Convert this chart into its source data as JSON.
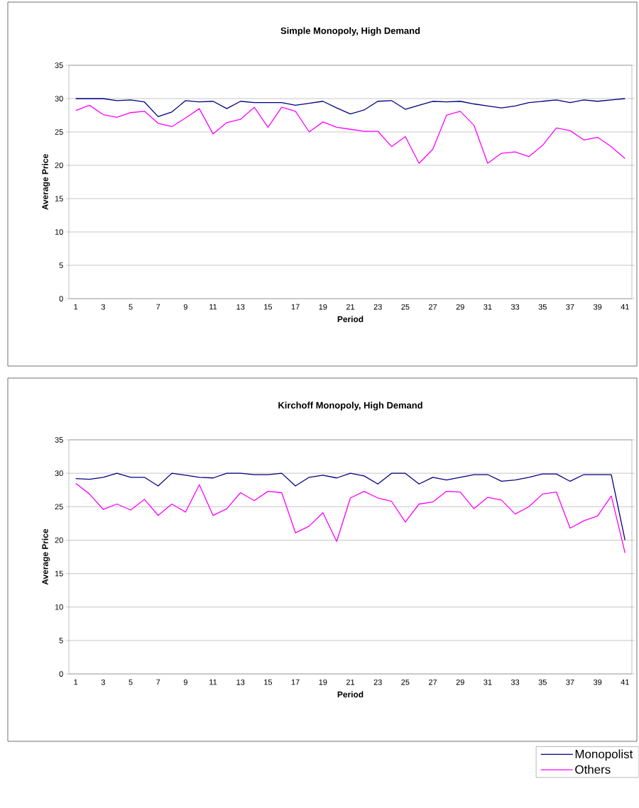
{
  "chart_data": [
    {
      "type": "line",
      "title": "Simple Monopoly, High Demand",
      "xlabel": "Period",
      "ylabel": "Average Price",
      "categories": [
        "1",
        null,
        "3",
        null,
        "5",
        null,
        "7",
        null,
        "9",
        null,
        "11",
        null,
        "13",
        null,
        "15",
        null,
        "17",
        null,
        "19",
        null,
        "21",
        null,
        "23",
        null,
        "25",
        null,
        "27",
        null,
        "29",
        null,
        "31",
        null,
        "33",
        null,
        "35",
        null,
        "37",
        null,
        "39",
        null,
        "41"
      ],
      "series": [
        {
          "color": "#000080",
          "values": [
            30,
            30,
            30,
            29.7,
            29.8,
            29.5,
            27.3,
            28,
            29.7,
            29.5,
            29.6,
            28.5,
            29.6,
            29.4,
            29.4,
            29.4,
            29,
            29.3,
            29.6,
            28.6,
            27.7,
            28.3,
            29.6,
            29.7,
            28.4,
            29,
            29.6,
            29.5,
            29.6,
            29.2,
            28.9,
            28.6,
            28.9,
            29.4,
            29.6,
            29.8,
            29.4,
            29.8,
            29.6,
            29.8,
            30
          ]
        },
        {
          "color": "#ff00ff",
          "values": [
            28.2,
            29,
            27.6,
            27.2,
            27.9,
            28.1,
            26.3,
            25.8,
            27.1,
            28.5,
            24.7,
            26.4,
            26.9,
            28.7,
            25.7,
            28.7,
            28.1,
            25,
            26.5,
            25.7,
            25.4,
            25.1,
            25.1,
            22.8,
            24.3,
            20.3,
            22.4,
            27.5,
            28.1,
            26,
            20.3,
            21.8,
            22,
            21.3,
            23,
            25.6,
            25.2,
            23.8,
            24.2,
            22.8,
            21
          ]
        }
      ],
      "ylim": [
        0,
        35
      ],
      "yticks": [
        0,
        5,
        10,
        15,
        20,
        25,
        30,
        35
      ],
      "grid": "y",
      "marker": "none"
    },
    {
      "type": "line",
      "title": "Kirchoff Monopoly, High Demand",
      "xlabel": "Period",
      "ylabel": "Average Price",
      "categories": [
        "1",
        null,
        "3",
        null,
        "5",
        null,
        "7",
        null,
        "9",
        null,
        "11",
        null,
        "13",
        null,
        "15",
        null,
        "17",
        null,
        "19",
        null,
        "21",
        null,
        "23",
        null,
        "25",
        null,
        "27",
        null,
        "29",
        null,
        "31",
        null,
        "33",
        null,
        "35",
        null,
        "37",
        null,
        "39",
        null,
        "41"
      ],
      "series": [
        {
          "name": "Monopolist",
          "color": "#000080",
          "values": [
            29.2,
            29.1,
            29.4,
            30,
            29.4,
            29.4,
            28.1,
            30,
            29.7,
            29.4,
            29.3,
            30,
            30,
            29.8,
            29.8,
            30,
            28.1,
            29.4,
            29.7,
            29.3,
            30,
            29.6,
            28.4,
            30,
            30,
            28.4,
            29.4,
            29,
            29.4,
            29.8,
            29.8,
            28.8,
            29,
            29.4,
            29.9,
            29.9,
            28.8,
            29.8,
            29.8,
            29.8,
            20
          ]
        },
        {
          "name": "Others",
          "color": "#ff00ff",
          "values": [
            28.5,
            26.9,
            24.6,
            25.4,
            24.5,
            26.1,
            23.7,
            25.4,
            24.2,
            28.3,
            23.7,
            24.7,
            27.1,
            25.9,
            27.3,
            27.1,
            21.1,
            22.1,
            24.1,
            19.8,
            26.3,
            27.3,
            26.3,
            25.8,
            22.7,
            25.4,
            25.7,
            27.3,
            27.2,
            24.7,
            26.4,
            26,
            23.9,
            25,
            26.9,
            27.2,
            21.8,
            22.9,
            23.6,
            26.6,
            18.1
          ]
        }
      ],
      "ylim": [
        0,
        35
      ],
      "yticks": [
        0,
        5,
        10,
        15,
        20,
        25,
        30,
        35
      ],
      "grid": "y",
      "marker": "none",
      "legend": "bottom right"
    }
  ]
}
